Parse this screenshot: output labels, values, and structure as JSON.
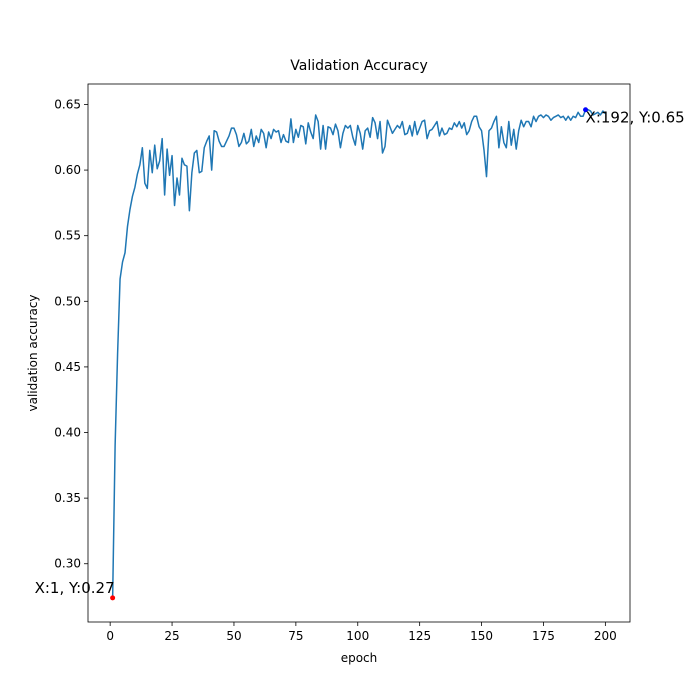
{
  "chart_data": {
    "type": "line",
    "title": "Validation Accuracy",
    "xlabel": "epoch",
    "ylabel": "validation accuracy",
    "xlim": [
      -8.95,
      209.95
    ],
    "ylim": [
      0.2556,
      0.6656
    ],
    "xticks": [
      0,
      25,
      50,
      75,
      100,
      125,
      150,
      175,
      200
    ],
    "yticks": [
      {
        "value": 0.3,
        "label": "0.30"
      },
      0.35,
      {
        "value": 0.4,
        "label": "0.40"
      },
      0.45,
      {
        "value": 0.5,
        "label": "0.50"
      },
      0.55,
      {
        "value": 0.6,
        "label": "0.60"
      },
      0.65
    ],
    "x": [
      1,
      2,
      3,
      4,
      5,
      6,
      7,
      8,
      9,
      10,
      11,
      12,
      13,
      14,
      15,
      16,
      17,
      18,
      19,
      20,
      21,
      22,
      23,
      24,
      25,
      26,
      27,
      28,
      29,
      30,
      31,
      32,
      33,
      34,
      35,
      36,
      37,
      38,
      39,
      40,
      41,
      42,
      43,
      44,
      45,
      46,
      47,
      48,
      49,
      50,
      51,
      52,
      53,
      54,
      55,
      56,
      57,
      58,
      59,
      60,
      61,
      62,
      63,
      64,
      65,
      66,
      67,
      68,
      69,
      70,
      71,
      72,
      73,
      74,
      75,
      76,
      77,
      78,
      79,
      80,
      81,
      82,
      83,
      84,
      85,
      86,
      87,
      88,
      89,
      90,
      91,
      92,
      93,
      94,
      95,
      96,
      97,
      98,
      99,
      100,
      101,
      102,
      103,
      104,
      105,
      106,
      107,
      108,
      109,
      110,
      111,
      112,
      113,
      114,
      115,
      116,
      117,
      118,
      119,
      120,
      121,
      122,
      123,
      124,
      125,
      126,
      127,
      128,
      129,
      130,
      131,
      132,
      133,
      134,
      135,
      136,
      137,
      138,
      139,
      140,
      141,
      142,
      143,
      144,
      145,
      146,
      147,
      148,
      149,
      150,
      151,
      152,
      153,
      154,
      155,
      156,
      157,
      158,
      159,
      160,
      161,
      162,
      163,
      164,
      165,
      166,
      167,
      168,
      169,
      170,
      171,
      172,
      173,
      174,
      175,
      176,
      177,
      178,
      179,
      180,
      181,
      182,
      183,
      184,
      185,
      186,
      187,
      188,
      189,
      190,
      191,
      192,
      193,
      194,
      195,
      196,
      197,
      198,
      199,
      200
    ],
    "series": [
      {
        "color": "#1f77b4",
        "values": [
          0.274,
          0.39,
          0.46,
          0.517,
          0.53,
          0.537,
          0.557,
          0.57,
          0.58,
          0.587,
          0.597,
          0.604,
          0.617,
          0.59,
          0.586,
          0.615,
          0.598,
          0.619,
          0.601,
          0.607,
          0.624,
          0.581,
          0.616,
          0.596,
          0.611,
          0.573,
          0.594,
          0.581,
          0.609,
          0.604,
          0.603,
          0.569,
          0.598,
          0.613,
          0.615,
          0.598,
          0.599,
          0.617,
          0.622,
          0.626,
          0.6,
          0.63,
          0.629,
          0.622,
          0.618,
          0.618,
          0.622,
          0.626,
          0.632,
          0.632,
          0.627,
          0.618,
          0.621,
          0.628,
          0.62,
          0.622,
          0.631,
          0.618,
          0.626,
          0.621,
          0.631,
          0.628,
          0.617,
          0.629,
          0.624,
          0.631,
          0.629,
          0.63,
          0.621,
          0.627,
          0.622,
          0.621,
          0.639,
          0.621,
          0.631,
          0.625,
          0.634,
          0.633,
          0.62,
          0.636,
          0.629,
          0.624,
          0.642,
          0.637,
          0.616,
          0.634,
          0.616,
          0.633,
          0.632,
          0.627,
          0.635,
          0.63,
          0.617,
          0.628,
          0.634,
          0.632,
          0.634,
          0.625,
          0.619,
          0.634,
          0.628,
          0.616,
          0.63,
          0.632,
          0.625,
          0.64,
          0.636,
          0.624,
          0.637,
          0.613,
          0.618,
          0.638,
          0.633,
          0.628,
          0.631,
          0.634,
          0.632,
          0.637,
          0.627,
          0.628,
          0.634,
          0.626,
          0.637,
          0.627,
          0.632,
          0.637,
          0.638,
          0.624,
          0.63,
          0.631,
          0.634,
          0.637,
          0.626,
          0.632,
          0.627,
          0.628,
          0.632,
          0.631,
          0.636,
          0.633,
          0.637,
          0.632,
          0.636,
          0.627,
          0.63,
          0.637,
          0.641,
          0.641,
          0.633,
          0.63,
          0.615,
          0.595,
          0.63,
          0.632,
          0.637,
          0.641,
          0.617,
          0.633,
          0.621,
          0.617,
          0.637,
          0.619,
          0.631,
          0.616,
          0.63,
          0.638,
          0.633,
          0.637,
          0.637,
          0.633,
          0.641,
          0.637,
          0.641,
          0.642,
          0.64,
          0.642,
          0.641,
          0.638,
          0.64,
          0.641,
          0.642,
          0.64,
          0.641,
          0.638,
          0.641,
          0.638,
          0.641,
          0.64,
          0.644,
          0.641,
          0.641,
          0.646,
          0.646,
          0.645,
          0.642,
          0.643,
          0.644,
          0.642,
          0.645,
          0.643
        ]
      }
    ],
    "annotations": [
      {
        "text": "X:1, Y:0.27",
        "x": 1,
        "y": 0.274,
        "color": "#ff0000"
      },
      {
        "text": "X:192, Y:0.65",
        "x": 192,
        "y": 0.646,
        "color": "#0000ff"
      }
    ]
  }
}
